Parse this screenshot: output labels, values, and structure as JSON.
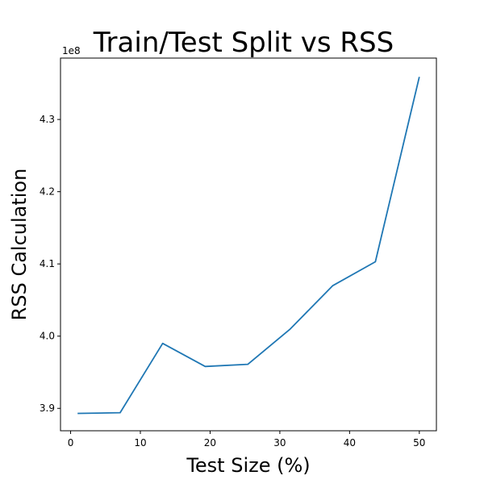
{
  "chart_data": {
    "type": "line",
    "title": "Train/Test Split vs RSS",
    "xlabel": "Test Size (%)",
    "ylabel": "RSS Calculation",
    "y_scale_label": "1e8",
    "xlim": [
      -1.45,
      52.45
    ],
    "ylim": [
      3.869,
      4.385
    ],
    "x_ticks": [
      0,
      10,
      20,
      30,
      40,
      50
    ],
    "x_tick_labels": [
      "0",
      "10",
      "20",
      "30",
      "40",
      "50"
    ],
    "y_ticks": [
      3.9,
      4.0,
      4.1,
      4.2,
      4.3
    ],
    "y_tick_labels": [
      "3.9",
      "4.0",
      "4.1",
      "4.2",
      "4.3"
    ],
    "grid": false,
    "legend": "none",
    "series": [
      {
        "color": "#1f77b4",
        "x": [
          1,
          7.1,
          13.2,
          19.3,
          25.4,
          31.5,
          37.6,
          43.7,
          50
        ],
        "y": [
          3.893,
          3.894,
          3.99,
          3.958,
          3.961,
          4.01,
          4.07,
          4.103,
          4.359
        ]
      }
    ]
  }
}
